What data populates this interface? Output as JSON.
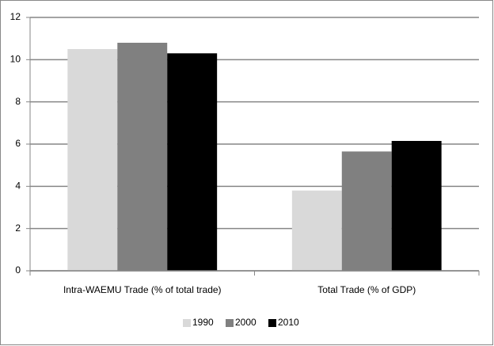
{
  "chart_data": {
    "type": "bar",
    "categories": [
      "Intra-WAEMU Trade (% of total trade)",
      "Total Trade (% of GDP)"
    ],
    "series": [
      {
        "name": "1990",
        "color": "#d9d9d9",
        "values": [
          10.5,
          3.8
        ]
      },
      {
        "name": "2000",
        "color": "#808080",
        "values": [
          10.8,
          5.65
        ]
      },
      {
        "name": "2010",
        "color": "#000000",
        "values": [
          10.3,
          6.15
        ]
      }
    ],
    "ylim": [
      0,
      12
    ],
    "yticks": [
      0,
      2,
      4,
      6,
      8,
      10,
      12
    ],
    "grid": true,
    "legend": "bottom"
  }
}
